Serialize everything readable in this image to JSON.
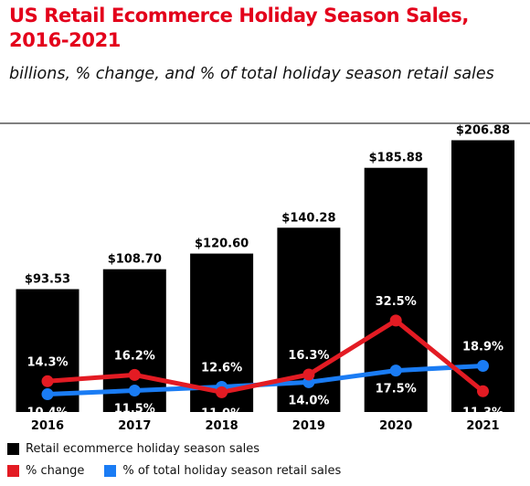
{
  "title": "US Retail Ecommerce Holiday Season Sales, 2016-2021",
  "subtitle": "billions, % change, and % of total holiday season retail sales",
  "colors": {
    "bars": "#000000",
    "pct_change": "#e31b23",
    "pct_total": "#1a7cf4",
    "title": "#e3001b"
  },
  "chart_data": {
    "type": "bar",
    "categories": [
      "2016",
      "2017",
      "2018",
      "2019",
      "2020",
      "2021"
    ],
    "series": [
      {
        "name": "Retail ecommerce holiday season sales",
        "type": "bar",
        "values": [
          93.53,
          108.7,
          120.6,
          140.28,
          185.88,
          206.88
        ],
        "labels": [
          "$93.53",
          "$108.70",
          "$120.60",
          "$140.28",
          "$185.88",
          "$206.88"
        ]
      },
      {
        "name": "% change",
        "type": "line",
        "values": [
          14.3,
          16.2,
          11.0,
          16.3,
          32.5,
          11.3
        ],
        "labels": [
          "14.3%",
          "16.2%",
          "11.0%",
          "16.3%",
          "32.5%",
          "11.3%"
        ]
      },
      {
        "name": "% of total holiday season retail sales",
        "type": "line",
        "values": [
          10.4,
          11.5,
          12.6,
          14.0,
          17.5,
          18.9
        ],
        "labels": [
          "10.4%",
          "11.5%",
          "12.6%",
          "14.0%",
          "17.5%",
          "18.9%"
        ]
      }
    ],
    "legend_position": "bottom-left",
    "grid": false
  }
}
